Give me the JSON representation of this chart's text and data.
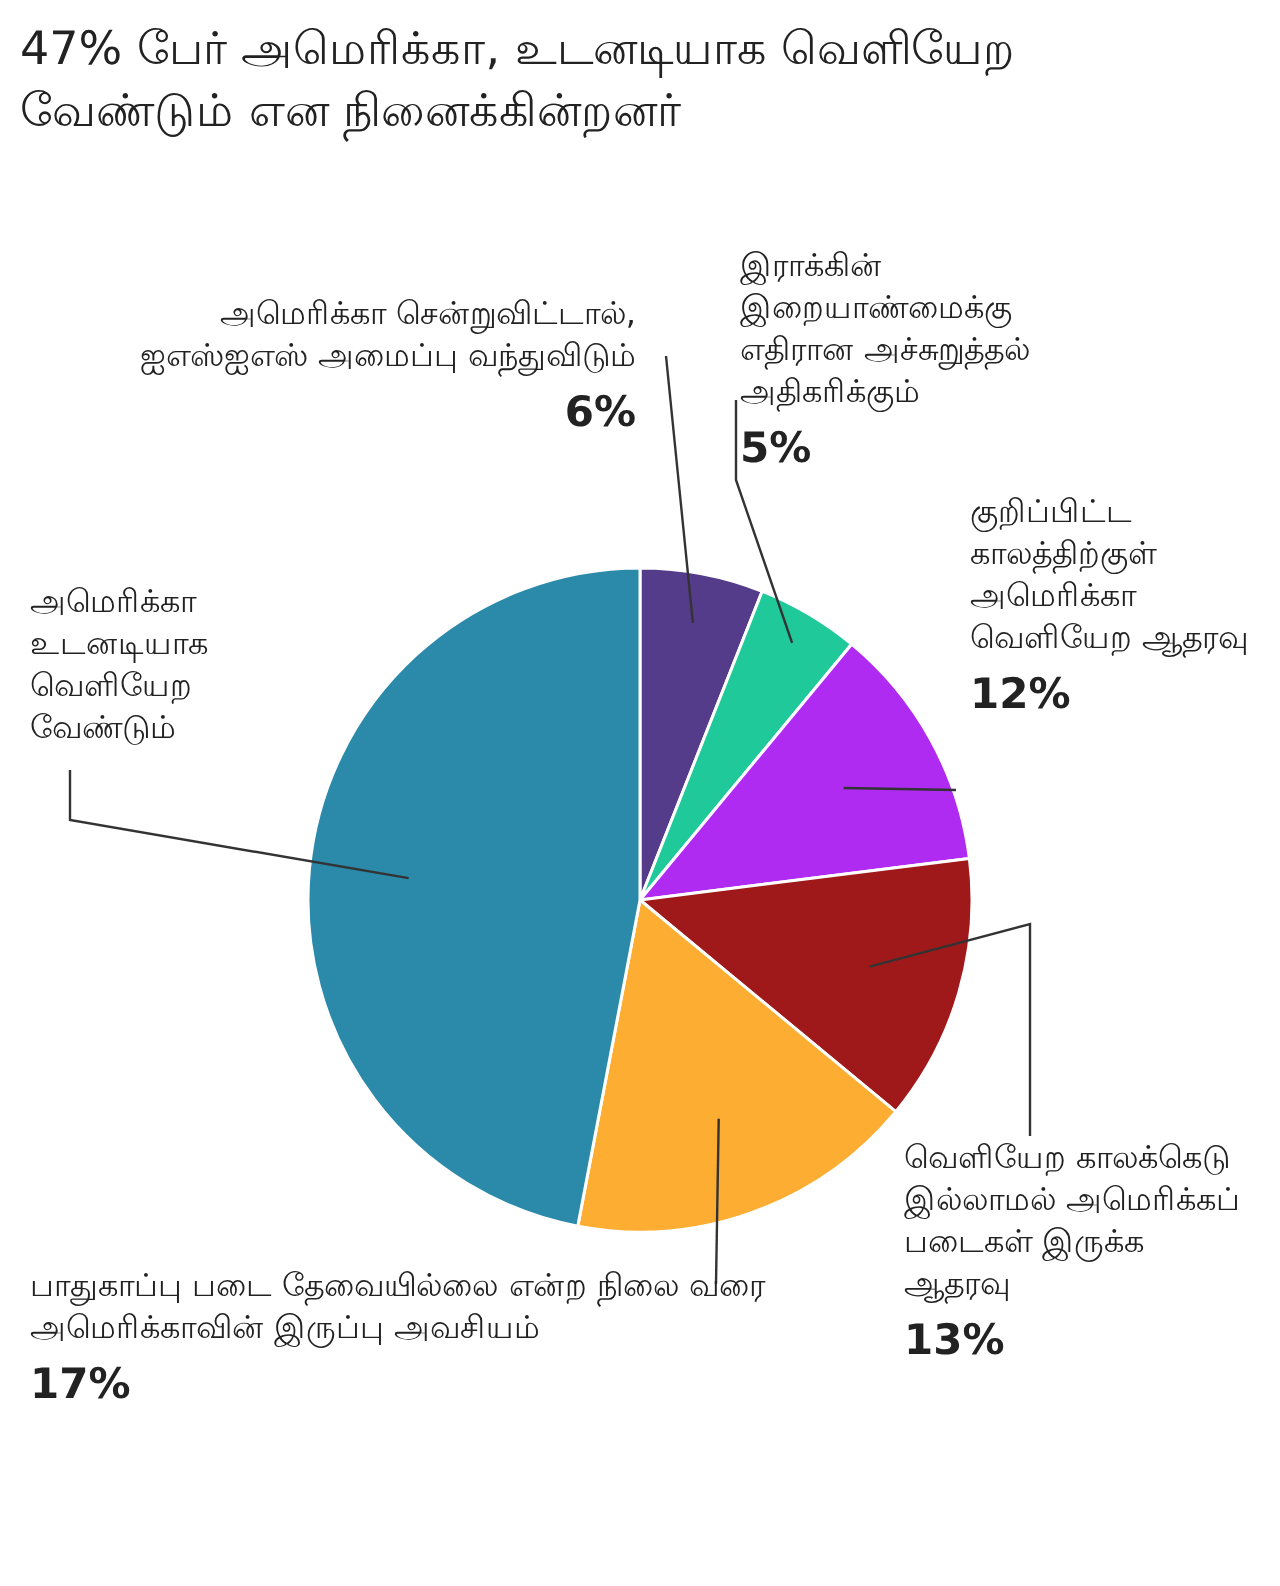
{
  "chart_data": {
    "type": "pie",
    "title": "47% பேர் அமெரிக்கா, உடனடியாக வெளியேற வேண்டும் என நினைக்கின்றனர்",
    "categories": [
      "அமெரிக்கா சென்றுவிட்டால், ஐஎஸ்ஐஎஸ் அமைப்பு வந்துவிடும்",
      "இராக்கின் இறையாண்மைக்கு எதிரான அச்சுறுத்தல் அதிகரிக்கும்",
      "குறிப்பிட்ட காலத்திற்குள் அமெரிக்கா வெளியேற ஆதரவு",
      "வெளியேற காலக்கெடு இல்லாமல் அமெரிக்கப் படைகள் இருக்க ஆதரவு",
      "பாதுகாப்பு படை தேவையில்லை என்ற நிலை வரை அமெரிக்காவின் இருப்பு அவசியம்",
      "அமெரிக்கா உடனடியாக வெளியேற வேண்டும்"
    ],
    "values": [
      6,
      5,
      12,
      13,
      17,
      47
    ],
    "colors": [
      "#553c8b",
      "#1fc99a",
      "#b02bf2",
      "#a0191a",
      "#fdad32",
      "#2b8aaa"
    ],
    "value_labels": [
      "6%",
      "5%",
      "12%",
      "13%",
      "17%",
      null
    ]
  }
}
